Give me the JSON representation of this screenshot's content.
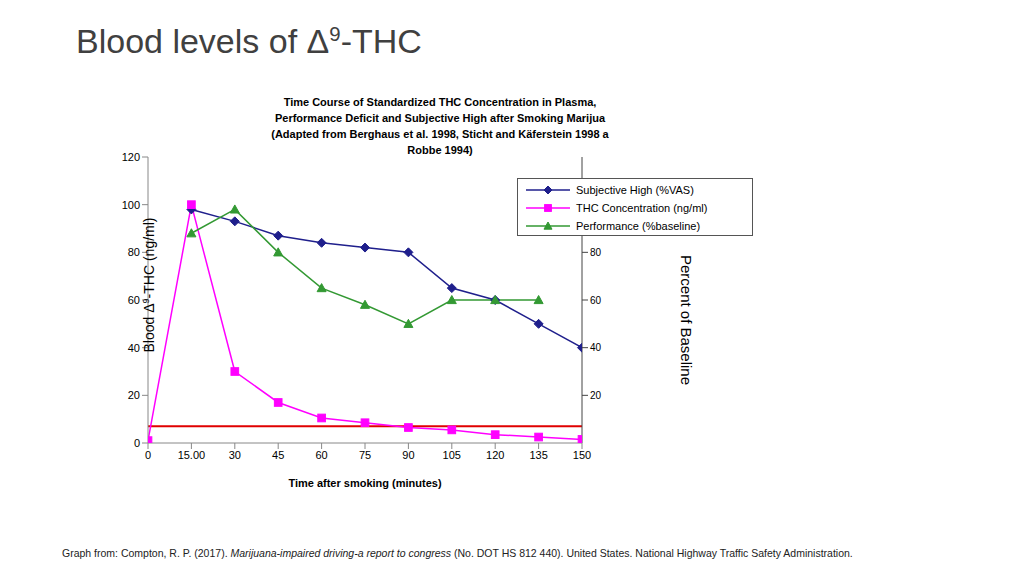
{
  "slide": {
    "title": {
      "before": "Blood levels of Δ",
      "superscript": "9",
      "after": "-THC"
    },
    "footer": {
      "prefix": "Graph from: Compton, R. P. (2017). ",
      "italic": "Marijuana-impaired driving-a report to congress",
      "suffix": " (No. DOT HS 812 440). United States. National Highway Traffic Safety Administration."
    }
  },
  "chart_data": {
    "type": "line",
    "title": "Time Course of Standardized THC Concentration in Plasma,\nPerformance Deficit and Subjective High after Smoking Marijua\n(Adapted from Berghaus et al. 1998, Sticht and Käferstein 1998 a\nRobbe 1994)",
    "x_label": "Time after smoking (minutes)",
    "y_label": {
      "before": "Blood Δ",
      "superscript": "9",
      "after": "-THC (ng/ml)"
    },
    "y2_label": "Percent of Baseline",
    "x": [
      0,
      15,
      30,
      45,
      60,
      75,
      90,
      105,
      120,
      135,
      150
    ],
    "xlim": [
      0,
      150
    ],
    "xticks": [
      0,
      {
        "value": 15,
        "label": "15.00"
      },
      30,
      45,
      60,
      75,
      90,
      105,
      120,
      135,
      150
    ],
    "ylim": [
      0,
      120
    ],
    "yticks": [
      0,
      20,
      40,
      60,
      80,
      100,
      120
    ],
    "y2lim": [
      0,
      120
    ],
    "y2ticks": [
      20,
      40,
      60,
      80
    ],
    "grid": false,
    "legend": "upper right",
    "series": [
      {
        "name": "Subjective High (%VAS)",
        "color": "#1f1f8c",
        "marker": "diamond",
        "axis": "y2",
        "values": [
          null,
          98,
          93,
          87,
          84,
          82,
          80,
          65,
          60,
          50,
          40
        ]
      },
      {
        "name": "THC Concentration (ng/ml)",
        "color": "#ff00ff",
        "marker": "square",
        "values": [
          1,
          100,
          30,
          17,
          10.5,
          8.5,
          6.5,
          5.5,
          3.5,
          2.5,
          1.5
        ]
      },
      {
        "name": "Performance (%baseline)",
        "color": "#339933",
        "marker": "triangle",
        "axis": "y2",
        "values": [
          null,
          88,
          98,
          80,
          65,
          58,
          50,
          60,
          60,
          60,
          null
        ]
      }
    ],
    "reference_lines": [
      {
        "y": 7,
        "color": "#e00000"
      }
    ]
  }
}
